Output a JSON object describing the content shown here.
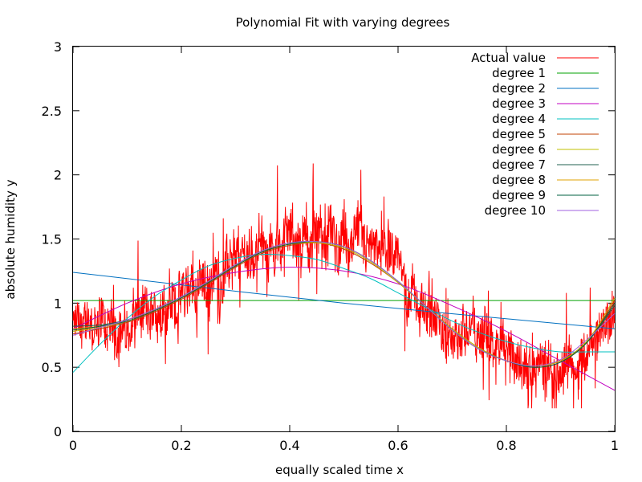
{
  "chart_data": {
    "type": "line",
    "title": "Polynomial Fit with varying degrees",
    "xlabel": "equally scaled time x",
    "ylabel": "absolute humidity y",
    "xlim": [
      0,
      1
    ],
    "ylim": [
      0,
      3
    ],
    "x_ticks": [
      "0",
      "0.2",
      "0.4",
      "0.6",
      "0.8",
      "1"
    ],
    "y_ticks": [
      "0",
      "0.5",
      "1",
      "1.5",
      "2",
      "2.5",
      "3"
    ],
    "legend_position": "top-right",
    "grid": false,
    "series": [
      {
        "name": "Actual value",
        "color": "#ff0000",
        "style": "noisy",
        "x": [
          0,
          0.05,
          0.1,
          0.15,
          0.2,
          0.25,
          0.3,
          0.35,
          0.4,
          0.45,
          0.5,
          0.55,
          0.6,
          0.65,
          0.7,
          0.75,
          0.8,
          0.85,
          0.9,
          0.95,
          1.0
        ],
        "y": [
          0.8,
          0.85,
          0.8,
          0.95,
          1.05,
          1.15,
          1.3,
          1.45,
          1.55,
          1.5,
          1.45,
          1.5,
          1.25,
          0.9,
          0.75,
          0.75,
          0.6,
          0.5,
          0.45,
          0.65,
          0.95
        ]
      },
      {
        "name": "degree 1",
        "color": "#00a000",
        "x": [
          0,
          1
        ],
        "y": [
          1.02,
          1.02
        ]
      },
      {
        "name": "degree 2",
        "color": "#0070c0",
        "x": [
          0,
          0.5,
          1
        ],
        "y": [
          1.24,
          1.0,
          0.8
        ]
      },
      {
        "name": "degree 3",
        "color": "#c000c0",
        "x": [
          0,
          0.1,
          0.2,
          0.3,
          0.4,
          0.5,
          0.6,
          0.7,
          0.8,
          0.9,
          1.0
        ],
        "y": [
          0.8,
          1.0,
          1.15,
          1.24,
          1.28,
          1.25,
          1.15,
          0.98,
          0.78,
          0.55,
          0.32
        ]
      },
      {
        "name": "degree 4",
        "color": "#00c0c0",
        "x": [
          0,
          0.05,
          0.1,
          0.15,
          0.2,
          0.25,
          0.3,
          0.35,
          0.4,
          0.45,
          0.5,
          0.55,
          0.6,
          0.65,
          0.7,
          0.75,
          0.8,
          0.85,
          0.9,
          0.95,
          1.0
        ],
        "y": [
          0.46,
          0.68,
          0.88,
          1.05,
          1.18,
          1.29,
          1.35,
          1.38,
          1.37,
          1.34,
          1.27,
          1.19,
          1.08,
          0.97,
          0.86,
          0.77,
          0.7,
          0.65,
          0.62,
          0.62,
          0.62
        ]
      },
      {
        "name": "degree 5",
        "color": "#c04000",
        "x": [
          0,
          0.05,
          0.1,
          0.15,
          0.2,
          0.25,
          0.3,
          0.35,
          0.4,
          0.45,
          0.5,
          0.55,
          0.6,
          0.65,
          0.7,
          0.75,
          0.8,
          0.85,
          0.9,
          0.95,
          1.0
        ],
        "y": [
          0.76,
          0.8,
          0.85,
          0.93,
          1.03,
          1.15,
          1.28,
          1.39,
          1.45,
          1.47,
          1.42,
          1.31,
          1.16,
          0.98,
          0.8,
          0.65,
          0.55,
          0.5,
          0.54,
          0.7,
          1.02
        ]
      },
      {
        "name": "degree 6",
        "color": "#c0c000",
        "x": [
          0,
          0.05,
          0.1,
          0.15,
          0.2,
          0.25,
          0.3,
          0.35,
          0.4,
          0.45,
          0.5,
          0.55,
          0.6,
          0.65,
          0.7,
          0.75,
          0.8,
          0.85,
          0.9,
          0.95,
          1.0
        ],
        "y": [
          0.78,
          0.81,
          0.86,
          0.94,
          1.04,
          1.16,
          1.29,
          1.4,
          1.46,
          1.47,
          1.43,
          1.32,
          1.16,
          0.98,
          0.8,
          0.65,
          0.55,
          0.51,
          0.55,
          0.71,
          1.04
        ]
      },
      {
        "name": "degree 7",
        "color": "#206050",
        "x": [
          0,
          0.05,
          0.1,
          0.15,
          0.2,
          0.25,
          0.3,
          0.35,
          0.4,
          0.45,
          0.5,
          0.55,
          0.6,
          0.65,
          0.7,
          0.75,
          0.8,
          0.85,
          0.9,
          0.95,
          1.0
        ],
        "y": [
          0.82,
          0.83,
          0.87,
          0.95,
          1.05,
          1.17,
          1.3,
          1.41,
          1.47,
          1.48,
          1.44,
          1.33,
          1.17,
          0.98,
          0.79,
          0.64,
          0.55,
          0.51,
          0.55,
          0.7,
          0.98
        ]
      },
      {
        "name": "degree 8",
        "color": "#e0a000",
        "x": [
          0,
          0.05,
          0.1,
          0.15,
          0.2,
          0.25,
          0.3,
          0.35,
          0.4,
          0.45,
          0.5,
          0.55,
          0.6,
          0.65,
          0.7,
          0.75,
          0.8,
          0.85,
          0.9,
          0.95,
          1.0
        ],
        "y": [
          0.8,
          0.82,
          0.86,
          0.94,
          1.04,
          1.16,
          1.29,
          1.4,
          1.46,
          1.48,
          1.44,
          1.33,
          1.17,
          0.98,
          0.79,
          0.64,
          0.55,
          0.51,
          0.55,
          0.7,
          1.0
        ]
      },
      {
        "name": "degree 9",
        "color": "#006040",
        "x": [
          0,
          0.05,
          0.1,
          0.15,
          0.2,
          0.25,
          0.3,
          0.35,
          0.4,
          0.45,
          0.5,
          0.55,
          0.6,
          0.65,
          0.7,
          0.75,
          0.8,
          0.85,
          0.9,
          0.95,
          1.0
        ],
        "y": [
          0.79,
          0.82,
          0.86,
          0.94,
          1.04,
          1.16,
          1.29,
          1.4,
          1.46,
          1.48,
          1.44,
          1.33,
          1.17,
          0.98,
          0.79,
          0.64,
          0.55,
          0.5,
          0.54,
          0.7,
          1.0
        ]
      },
      {
        "name": "degree 10",
        "color": "#a060e0",
        "x": [
          0,
          0.05,
          0.1,
          0.15,
          0.2,
          0.25,
          0.3,
          0.35,
          0.4,
          0.45,
          0.5,
          0.55,
          0.6,
          0.65,
          0.7,
          0.75,
          0.8,
          0.85,
          0.9,
          0.95,
          1.0
        ],
        "y": [
          0.75,
          0.81,
          0.87,
          0.95,
          1.05,
          1.17,
          1.3,
          1.41,
          1.47,
          1.48,
          1.44,
          1.33,
          1.17,
          0.98,
          0.79,
          0.64,
          0.55,
          0.51,
          0.56,
          0.72,
          0.92
        ]
      }
    ]
  }
}
